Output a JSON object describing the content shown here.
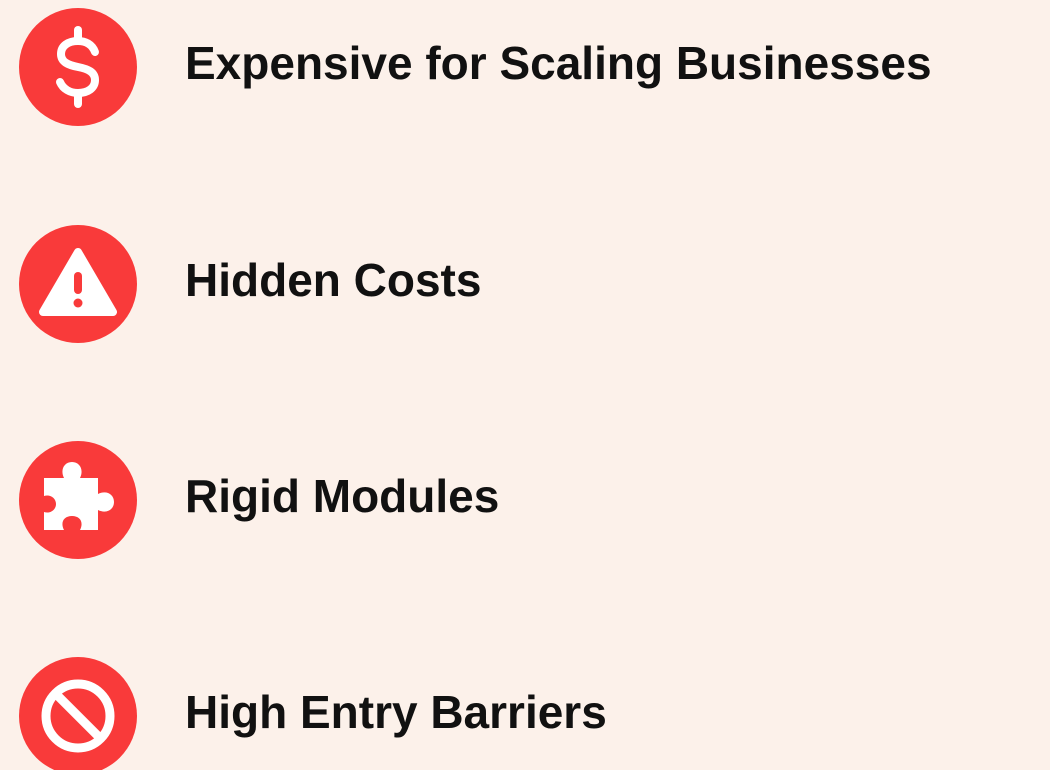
{
  "items": [
    {
      "label": "Expensive for Scaling Businesses"
    },
    {
      "label": "Hidden Costs"
    },
    {
      "label": "Rigid Modules"
    },
    {
      "label": "High Entry Barriers"
    }
  ]
}
